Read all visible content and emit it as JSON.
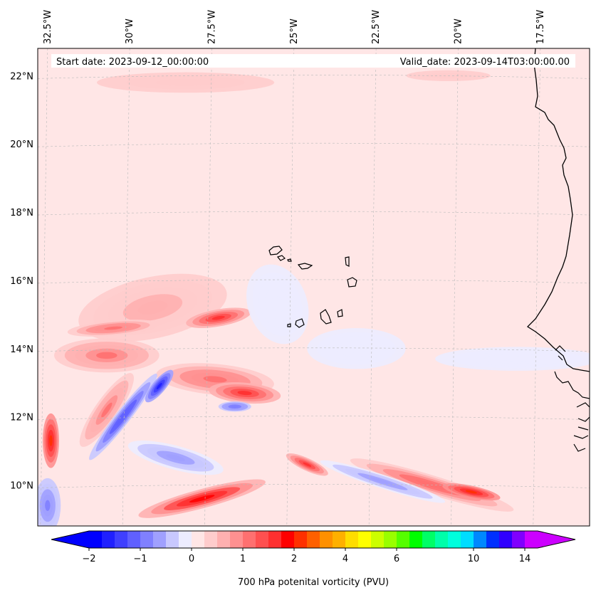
{
  "chart_data": {
    "type": "heatmap",
    "variable": "700 hPa potenital vorticity (PVU)",
    "start_date_label": "Start date: 2023-09-12_00:00:00",
    "valid_date_label": "Valid_date: 2023-09-14T03:00:00.00",
    "lon_range": [
      -32.8,
      -16.0
    ],
    "lat_range": [
      8.8,
      22.8
    ],
    "lon_ticks": [
      {
        "value": -32.5,
        "label": "32.5°W"
      },
      {
        "value": -30.0,
        "label": "30°W"
      },
      {
        "value": -27.5,
        "label": "27.5°W"
      },
      {
        "value": -25.0,
        "label": "25°W"
      },
      {
        "value": -22.5,
        "label": "22.5°W"
      },
      {
        "value": -20.0,
        "label": "20°W"
      },
      {
        "value": -17.5,
        "label": "17.5°W"
      }
    ],
    "lat_ticks": [
      {
        "value": 22,
        "label": "22°N"
      },
      {
        "value": 20,
        "label": "20°N"
      },
      {
        "value": 18,
        "label": "18°N"
      },
      {
        "value": 16,
        "label": "16°N"
      },
      {
        "value": 14,
        "label": "14°N"
      },
      {
        "value": 12,
        "label": "12°N"
      },
      {
        "value": 10,
        "label": "10°N"
      }
    ],
    "colorbar": {
      "levels": [
        -2,
        -1.75,
        -1.5,
        -1.25,
        -1,
        -0.75,
        -0.5,
        -0.25,
        0,
        0.25,
        0.5,
        0.75,
        1,
        1.25,
        1.5,
        1.75,
        2,
        2.5,
        3,
        3.5,
        4,
        4.5,
        5,
        5.5,
        6,
        6.5,
        7,
        7.5,
        8,
        9,
        10,
        11,
        12,
        13,
        14,
        15
      ],
      "colors": [
        "#0000ff",
        "#2020ff",
        "#4040ff",
        "#6060ff",
        "#8080ff",
        "#a0a0ff",
        "#c8c8ff",
        "#ececff",
        "#ffe6e6",
        "#ffcccc",
        "#ffb0b0",
        "#ff9090",
        "#ff7070",
        "#ff5050",
        "#ff3030",
        "#ff0000",
        "#ff3000",
        "#ff6000",
        "#ff9000",
        "#ffb000",
        "#ffdd00",
        "#ffff00",
        "#ccff00",
        "#99ff00",
        "#55ff00",
        "#00ff00",
        "#00ff66",
        "#00ffaa",
        "#00ffdd",
        "#00ddff",
        "#0088ff",
        "#0030ff",
        "#3000ff",
        "#8000ff",
        "#cc00ff"
      ],
      "under_color": "#0000ff",
      "over_color": "#cc00ff",
      "ticks": [
        {
          "value": -2,
          "label": "−2"
        },
        {
          "value": -1,
          "label": "−1"
        },
        {
          "value": 0,
          "label": "0"
        },
        {
          "value": 1,
          "label": "1"
        },
        {
          "value": 2,
          "label": "2"
        },
        {
          "value": 4,
          "label": "4"
        },
        {
          "value": 6,
          "label": "6"
        },
        {
          "value": 10,
          "label": "10"
        },
        {
          "value": 14,
          "label": "14"
        }
      ],
      "label": "700 hPa potenital vorticity (PVU)"
    },
    "background_value": 0.1,
    "features": [
      {
        "kind": "ridge",
        "lon": -29.3,
        "lat": 15.2,
        "sx": 2.3,
        "sy": 0.9,
        "angle": 12,
        "value": 0.7
      },
      {
        "kind": "ridge",
        "lon": -27.3,
        "lat": 14.9,
        "sx": 1.0,
        "sy": 0.25,
        "angle": 10,
        "value": 1.5
      },
      {
        "kind": "ridge",
        "lon": -30.5,
        "lat": 14.6,
        "sx": 1.4,
        "sy": 0.22,
        "angle": 5,
        "value": 1.1
      },
      {
        "kind": "ridge",
        "lon": -30.7,
        "lat": 13.8,
        "sx": 1.6,
        "sy": 0.5,
        "angle": 0,
        "value": 1.0
      },
      {
        "kind": "ridge",
        "lon": -27.4,
        "lat": 13.1,
        "sx": 1.8,
        "sy": 0.45,
        "angle": -5,
        "value": 1.1
      },
      {
        "kind": "ridge",
        "lon": -26.5,
        "lat": 12.7,
        "sx": 1.1,
        "sy": 0.3,
        "angle": -5,
        "value": 1.5
      },
      {
        "kind": "ridge",
        "lon": -32.4,
        "lat": 11.3,
        "sx": 0.25,
        "sy": 0.8,
        "angle": 0,
        "value": 2.0
      },
      {
        "kind": "ridge",
        "lon": -30.7,
        "lat": 12.2,
        "sx": 0.35,
        "sy": 1.3,
        "angle": -35,
        "value": 1.0
      },
      {
        "kind": "ridge",
        "lon": -27.8,
        "lat": 9.6,
        "sx": 2.0,
        "sy": 0.28,
        "angle": 15,
        "value": 1.8
      },
      {
        "kind": "ridge",
        "lon": -20.8,
        "lat": 10.0,
        "sx": 2.6,
        "sy": 0.28,
        "angle": -17,
        "value": 1.2
      },
      {
        "kind": "ridge",
        "lon": -19.6,
        "lat": 9.8,
        "sx": 0.9,
        "sy": 0.18,
        "angle": -12,
        "value": 2.0
      },
      {
        "kind": "ridge",
        "lon": -24.6,
        "lat": 10.6,
        "sx": 0.7,
        "sy": 0.18,
        "angle": -25,
        "value": 1.6
      },
      {
        "kind": "ridge",
        "lon": -28.3,
        "lat": 21.8,
        "sx": 4.5,
        "sy": 0.5,
        "angle": 0,
        "value": 0.45
      },
      {
        "kind": "ridge",
        "lon": -20.3,
        "lat": 22.0,
        "sx": 3.2,
        "sy": 0.4,
        "angle": 0,
        "value": 0.35
      },
      {
        "kind": "trough",
        "lon": -30.2,
        "lat": 12.0,
        "sx": 0.22,
        "sy": 1.6,
        "angle": -38,
        "value": -1.2
      },
      {
        "kind": "trough",
        "lon": -29.1,
        "lat": 12.9,
        "sx": 0.2,
        "sy": 0.6,
        "angle": -40,
        "value": -1.6
      },
      {
        "kind": "trough",
        "lon": -32.5,
        "lat": 9.4,
        "sx": 0.4,
        "sy": 0.8,
        "angle": 0,
        "value": -0.8
      },
      {
        "kind": "trough",
        "lon": -28.6,
        "lat": 10.8,
        "sx": 1.5,
        "sy": 0.35,
        "angle": -15,
        "value": -0.6
      },
      {
        "kind": "trough",
        "lon": -26.8,
        "lat": 12.3,
        "sx": 0.5,
        "sy": 0.15,
        "angle": 0,
        "value": -1.0
      },
      {
        "kind": "trough",
        "lon": -22.3,
        "lat": 10.1,
        "sx": 2.0,
        "sy": 0.2,
        "angle": -18,
        "value": -0.6
      },
      {
        "kind": "trough",
        "lon": -23.1,
        "lat": 14.0,
        "sx": 1.5,
        "sy": 0.6,
        "angle": 0,
        "value": -0.25
      },
      {
        "kind": "trough",
        "lon": -18.2,
        "lat": 13.7,
        "sx": 2.5,
        "sy": 0.35,
        "angle": 0,
        "value": -0.25
      },
      {
        "kind": "trough",
        "lon": -25.5,
        "lat": 15.3,
        "sx": 0.9,
        "sy": 1.2,
        "angle": 20,
        "value": -0.2
      }
    ],
    "features_description": "Positive PV (red) streaks concentrated in the southwest quadrant west of 25°W between 9°N and 15°N, with negative PV (blue) filaments interleaved; weak positive background elsewhere; coastline of West Africa and Cape Verde islands overlaid."
  }
}
